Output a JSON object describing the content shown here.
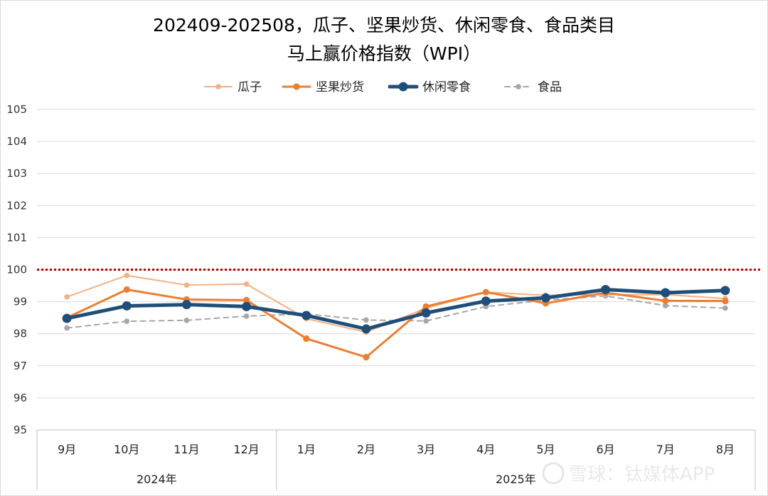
{
  "chart_data": {
    "type": "line",
    "title_line1": "202409-202508，瓜子、坚果炒货、休闲零食、食品类目",
    "title_line2": "马上赢价格指数（WPI）",
    "categories": [
      "9月",
      "10月",
      "11月",
      "12月",
      "1月",
      "2月",
      "3月",
      "4月",
      "5月",
      "6月",
      "7月",
      "8月"
    ],
    "year_groups": [
      {
        "label": "2024年",
        "count": 4
      },
      {
        "label": "2025年",
        "count": 8
      }
    ],
    "ylim": [
      95,
      105
    ],
    "yticks": [
      "95",
      "96",
      "97",
      "98",
      "99",
      "100",
      "101",
      "102",
      "103",
      "104",
      "105"
    ],
    "reference_line": {
      "value": 100,
      "color": "#c00000"
    },
    "grid": true,
    "legend_position": "top",
    "series": [
      {
        "name": "瓜子",
        "color": "#f4b183",
        "style": "solid",
        "width": "thin",
        "values": [
          99.15,
          99.82,
          99.52,
          99.55,
          98.47,
          98.05,
          98.8,
          99.3,
          99.2,
          99.22,
          99.22,
          99.1
        ]
      },
      {
        "name": "坚果炒货",
        "color": "#ed7d31",
        "style": "solid",
        "width": "medium",
        "values": [
          98.5,
          99.38,
          99.07,
          99.05,
          97.85,
          97.27,
          98.85,
          99.3,
          98.95,
          99.28,
          99.03,
          99.02
        ]
      },
      {
        "name": "休闲零食",
        "color": "#1f4e79",
        "style": "solid",
        "width": "thick",
        "values": [
          98.48,
          98.87,
          98.91,
          98.85,
          98.57,
          98.15,
          98.65,
          99.02,
          99.12,
          99.38,
          99.28,
          99.35
        ]
      },
      {
        "name": "食品",
        "color": "#a6a6a6",
        "style": "dashed",
        "width": "thin",
        "values": [
          98.18,
          98.39,
          98.42,
          98.55,
          98.62,
          98.43,
          98.4,
          98.85,
          99.05,
          99.18,
          98.88,
          98.8
        ]
      }
    ]
  },
  "watermark": "雪球：钛媒体APP"
}
